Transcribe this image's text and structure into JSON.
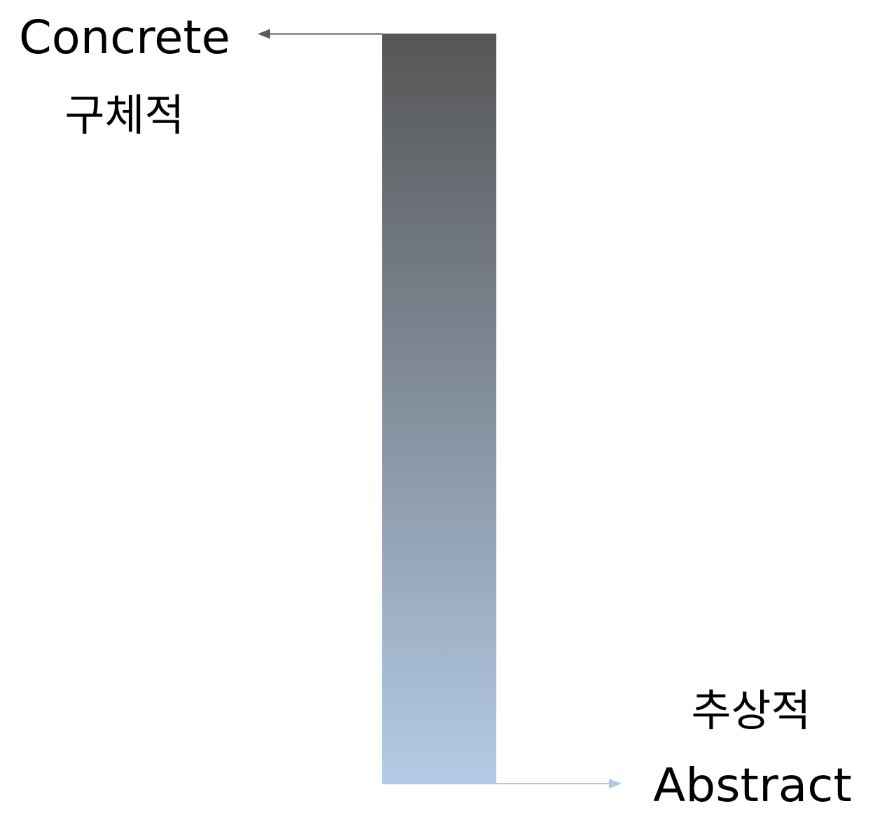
{
  "top_end": {
    "english_label": "Concrete",
    "korean_label": "구체적",
    "arrow_color": "#5a5a5a"
  },
  "bottom_end": {
    "korean_label": "추상적",
    "english_label": "Abstract",
    "arrow_color": "#b0c8e0"
  },
  "gradient_bar": {
    "top_color": "#555555",
    "bottom_color": "#b3cbe6"
  }
}
